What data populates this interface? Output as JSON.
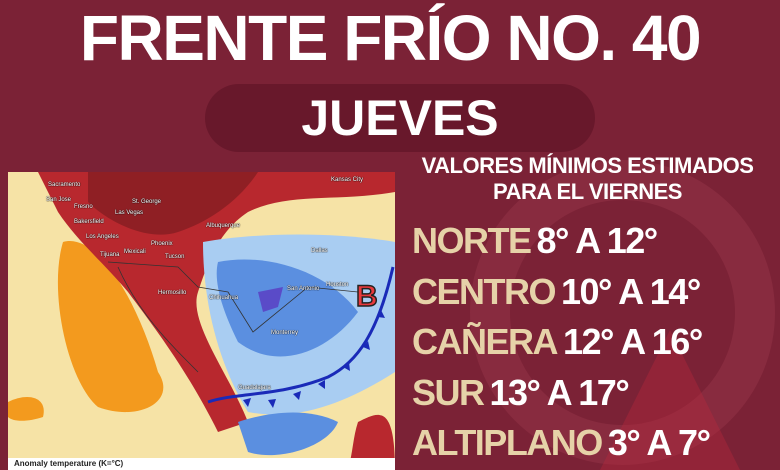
{
  "title": "FRENTE FRÍO NO. 40",
  "day": "JUEVES",
  "heading": {
    "line1": "VALORES MÍNIMOS ESTIMADOS",
    "line2": "PARA EL VIERNES"
  },
  "regions": [
    {
      "label": "NORTE",
      "range": "8° A 12°"
    },
    {
      "label": "CENTRO",
      "range": "10° A 14°"
    },
    {
      "label": "CAÑERA",
      "range": "12° A 16°"
    },
    {
      "label": "SUR",
      "range": "13° A 17°"
    },
    {
      "label": "ALTIPLANO",
      "range": "3° A 7°"
    }
  ],
  "map": {
    "caption": "Anomaly temperature (K=°C)",
    "pressure_label": "B",
    "cities": [
      "Sacramento",
      "San Jose",
      "Fresno",
      "Bakersfield",
      "Los Angeles",
      "Las Vegas",
      "St. George",
      "Phoenix",
      "Tucson",
      "Mexicali",
      "Tijuana",
      "Albuquerque",
      "Hermosillo",
      "Chihuahua",
      "Monterrey",
      "San Antonio",
      "Houston",
      "Dallas",
      "Kansas City",
      "Guadalajara"
    ],
    "colors": {
      "warm": "#b8282e",
      "hot": "#8f1f24",
      "orange": "#f39a1e",
      "cold": "#5b8fe0",
      "cold_light": "#a9cdf2",
      "front": "#1a2ab8",
      "low": "#e8393d"
    }
  }
}
